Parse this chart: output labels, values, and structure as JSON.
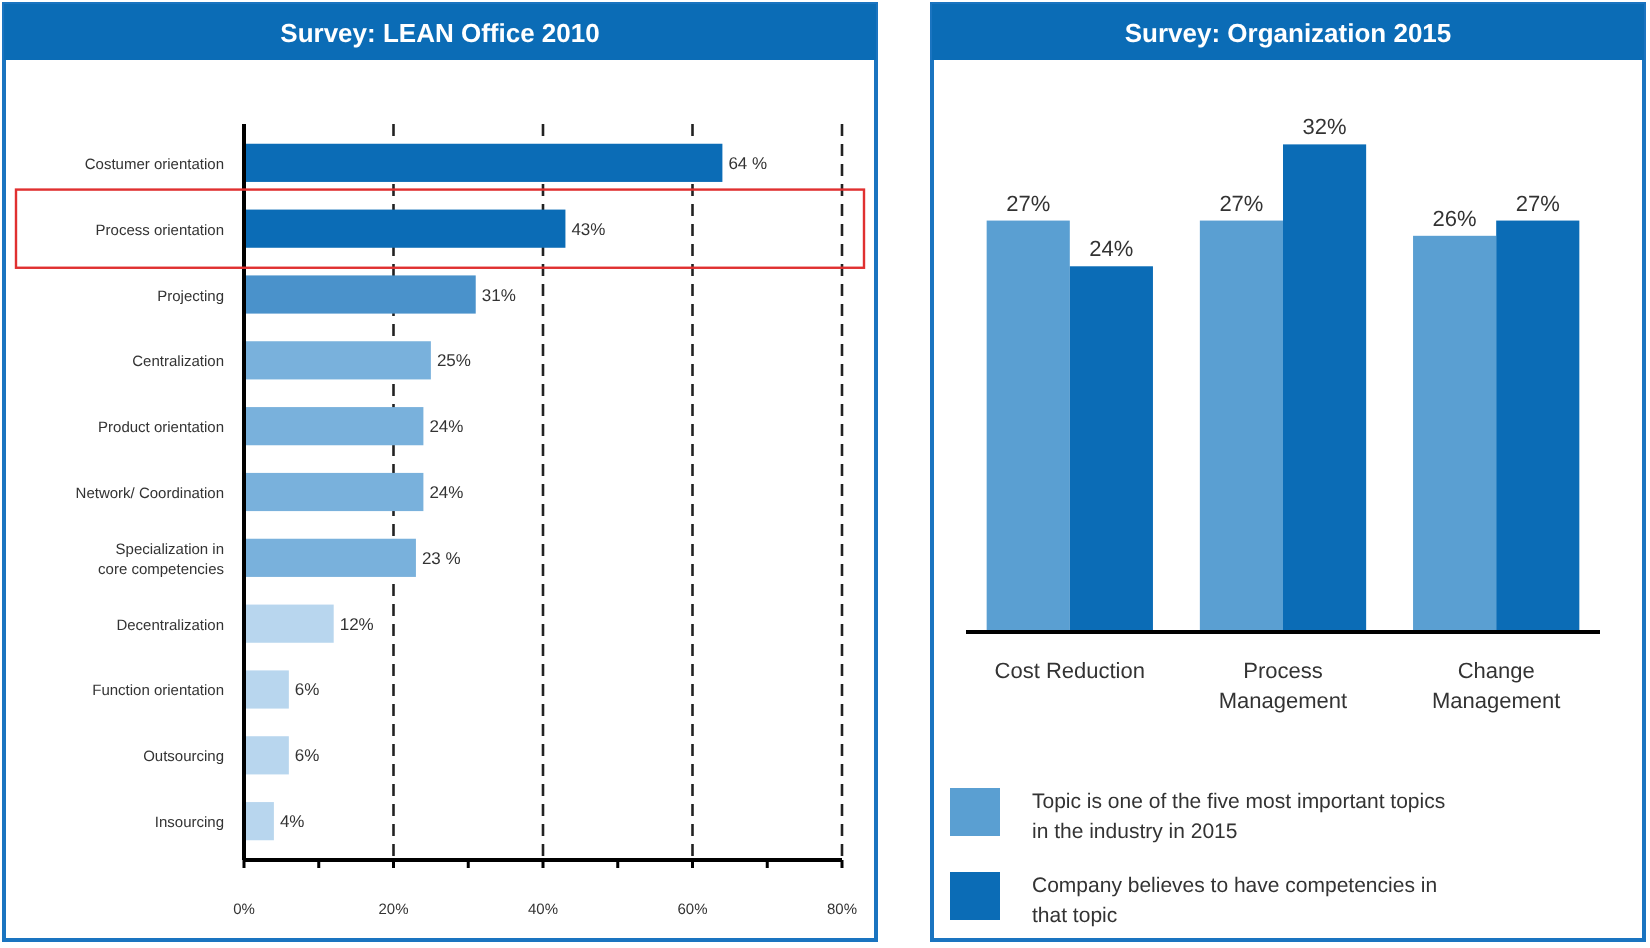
{
  "chart_data": [
    {
      "type": "bar",
      "title": "Survey: LEAN Office 2010",
      "orientation": "horizontal",
      "categories": [
        "Costumer orientation",
        "Process orientation",
        "Projecting",
        "Centralization",
        "Product orientation",
        "Network/  Coordination",
        "Specialization in\ncore competencies",
        "Decentralization",
        "Function orientation",
        "Outsourcing",
        "Insourcing"
      ],
      "values": [
        64,
        43,
        31,
        25,
        24,
        24,
        23,
        12,
        6,
        6,
        4
      ],
      "colors": [
        "#0b6cb6",
        "#0b6cb6",
        "#4a92cb",
        "#79b1dc",
        "#79b1dc",
        "#79b1dc",
        "#79b1dc",
        "#b8d6ee",
        "#b8d6ee",
        "#b8d6ee",
        "#b8d6ee"
      ],
      "value_labels": [
        "64 %",
        "43%",
        "31%",
        "25%",
        "24%",
        "24%",
        "23 %",
        "12%",
        "6%",
        "6%",
        "4%"
      ],
      "xlim": [
        0,
        80
      ],
      "xticks": [
        {
          "value": 0,
          "label": "0%"
        },
        {
          "value": 10,
          "label": null
        },
        {
          "value": 20,
          "label": "20%"
        },
        {
          "value": 30,
          "label": null
        },
        {
          "value": 40,
          "label": "40%"
        },
        {
          "value": 50,
          "label": null
        },
        {
          "value": 60,
          "label": "60%"
        },
        {
          "value": 70,
          "label": null
        },
        {
          "value": 80,
          "label": "80%"
        }
      ],
      "grid": "x",
      "line_style": "dashed"
    },
    {
      "type": "bar",
      "title": "Survey: Organization 2015",
      "categories": [
        "Cost Reduction",
        "Process\nManagement",
        "Change\nManagement"
      ],
      "series": [
        {
          "name": "Topic is one of the five most important topics\nin the industry in 2015",
          "color": "#5a9fd2",
          "values": [
            27,
            27,
            26
          ],
          "value_labels": [
            "27%",
            "27%",
            "26%"
          ]
        },
        {
          "name": "Company believes to have competencies in\nthat topic",
          "color": "#0b6cb6",
          "values": [
            24,
            32,
            27
          ],
          "value_labels": [
            "24%",
            "32%",
            "27%"
          ]
        }
      ],
      "legend": "bottom"
    }
  ]
}
